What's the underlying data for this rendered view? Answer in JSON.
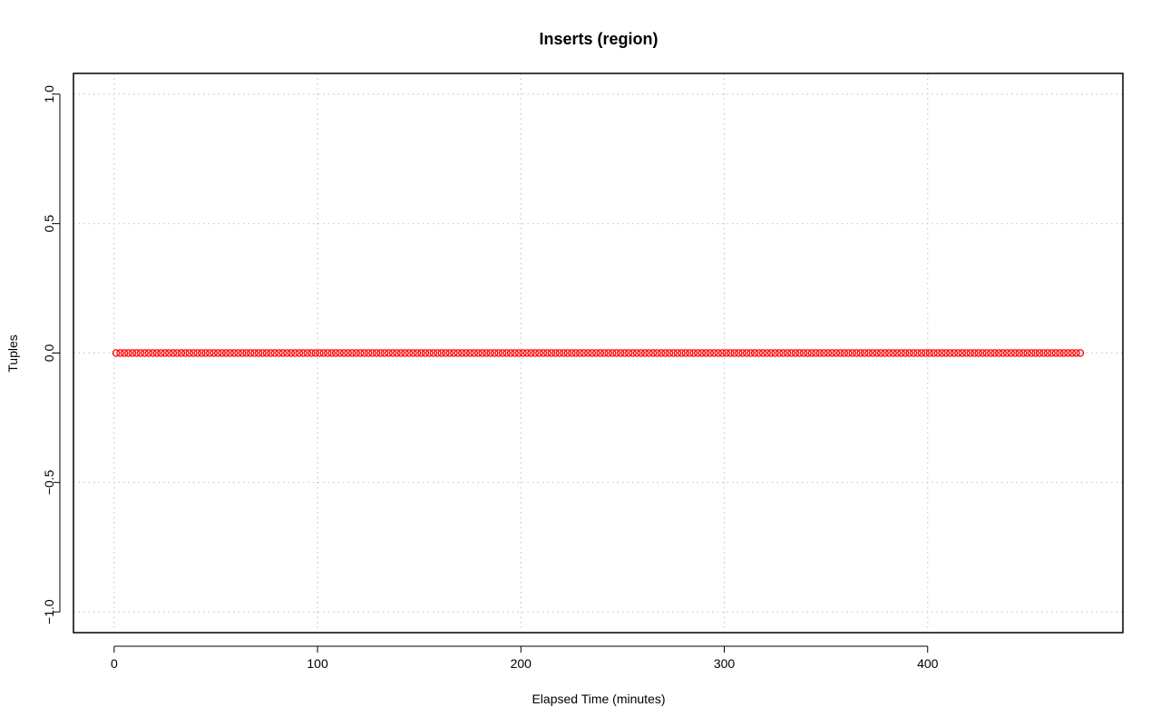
{
  "chart_data": {
    "type": "scatter",
    "title": "Inserts (region)",
    "xlabel": "Elapsed Time (minutes)",
    "ylabel": "Tuples",
    "xlim": [
      -20,
      496
    ],
    "ylim": [
      -1.08,
      1.08
    ],
    "x_ticks": [
      0,
      100,
      200,
      300,
      400
    ],
    "x_tick_labels": [
      "0",
      "100",
      "200",
      "300",
      "400"
    ],
    "y_ticks": [
      -1.0,
      -0.5,
      0.0,
      0.5,
      1.0
    ],
    "y_tick_labels": [
      "−1.0",
      "−0.5",
      "0.0",
      "0.5",
      "1.0"
    ],
    "grid": true,
    "legend": "none",
    "series": [
      {
        "color": "#ff0000",
        "marker": "open-circle",
        "x_start": 1,
        "x_end": 476,
        "x_step": 2,
        "y_value": 0
      }
    ]
  }
}
